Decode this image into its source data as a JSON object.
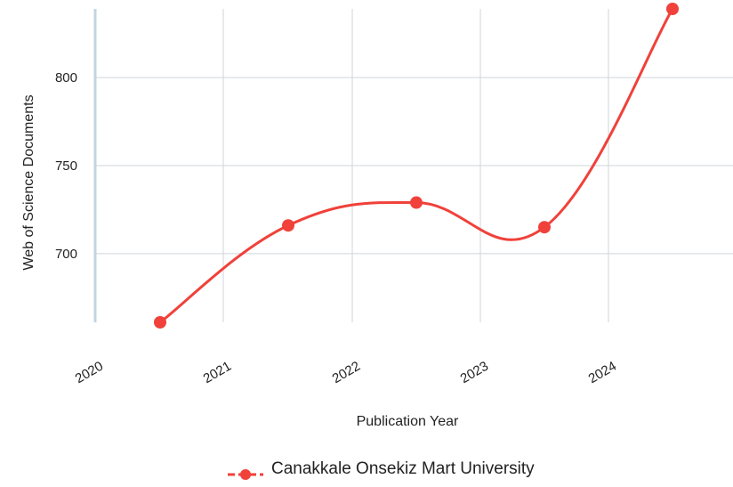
{
  "chart_data": {
    "type": "line",
    "x": [
      2020,
      2021,
      2022,
      2023,
      2024
    ],
    "x_tick_labels": [
      "2020",
      "2021",
      "2022",
      "2023",
      "2024"
    ],
    "y_ticks": [
      700,
      750,
      800
    ],
    "y_tick_labels": [
      "700",
      "750",
      "800"
    ],
    "ylim": [
      661,
      839
    ],
    "xlabel": "Publication Year",
    "ylabel": "Web of Science Documents",
    "grid": true,
    "legend_position": "bottom-center",
    "series": [
      {
        "name": "Canakkale Onsekiz Mart University",
        "color": "#f0413a",
        "values": [
          661,
          716,
          729,
          715,
          839
        ]
      }
    ]
  }
}
